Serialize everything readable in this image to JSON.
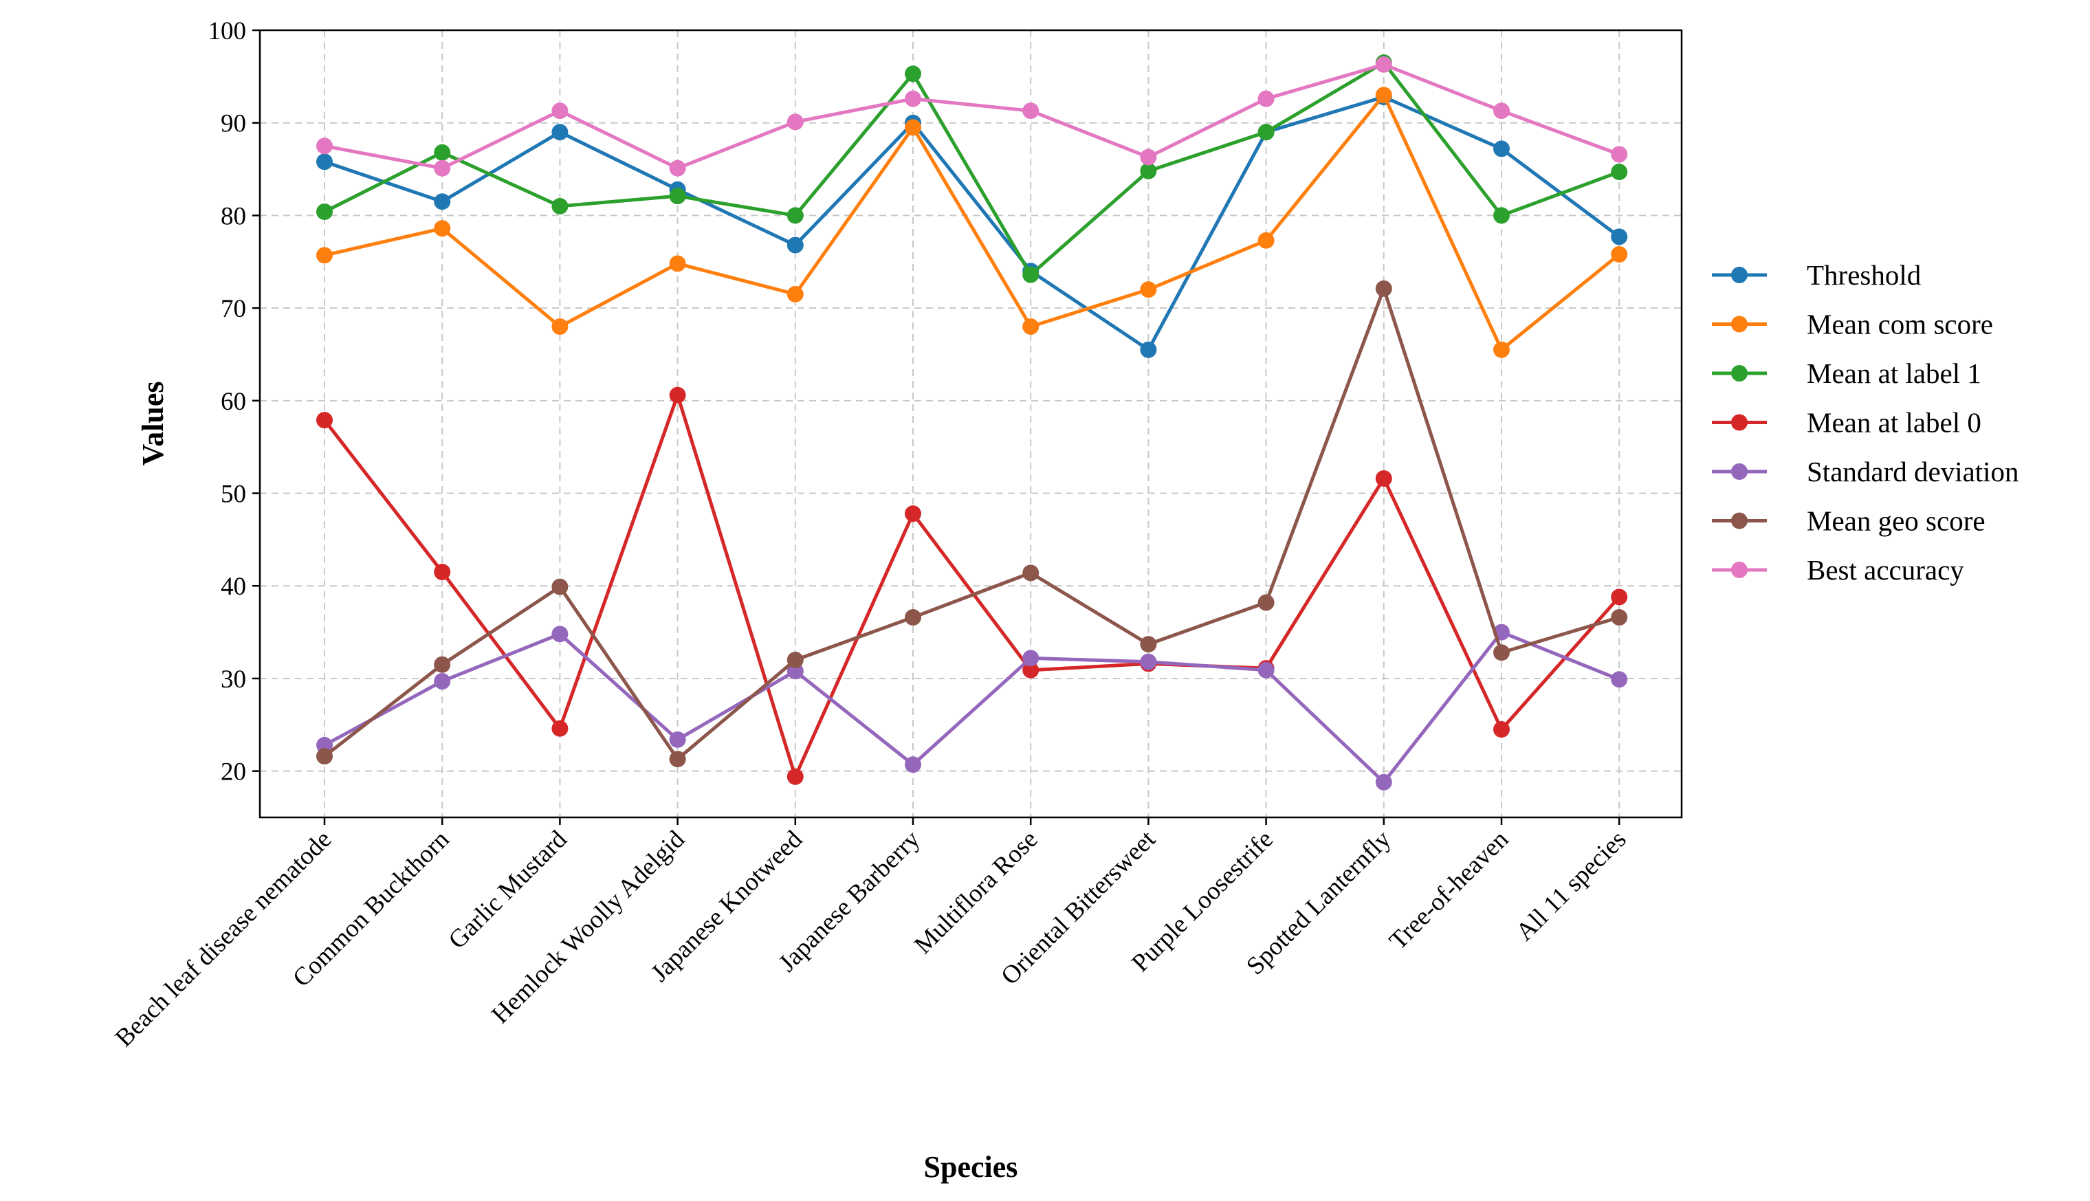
{
  "chart_data": {
    "type": "line",
    "xlabel": "Species",
    "ylabel": "Values",
    "categories": [
      "Beach leaf disease nematode",
      "Common Buckthorn",
      "Garlic Mustard",
      "Hemlock Woolly Adelgid",
      "Japanese Knotweed",
      "Japanese Barberry",
      "Multiflora Rose",
      "Oriental Bittersweet",
      "Purple Loosestrife",
      "Spotted Lanternfly",
      "Tree-of-heaven",
      "All 11 species"
    ],
    "ylim": [
      15,
      100
    ],
    "yticks": [
      20,
      30,
      40,
      50,
      60,
      70,
      80,
      90,
      100
    ],
    "grid": true,
    "legend_position": "right, outside plot",
    "series": [
      {
        "name": "Threshold",
        "color": "#1f77b4",
        "values": [
          85.8,
          81.5,
          89.0,
          82.8,
          76.8,
          90.0,
          74.0,
          65.5,
          89.0,
          92.8,
          87.2,
          77.7
        ]
      },
      {
        "name": "Mean com score",
        "color": "#ff7f0e",
        "values": [
          75.7,
          78.6,
          68.0,
          74.8,
          71.5,
          89.5,
          68.0,
          72.0,
          77.3,
          93.0,
          65.5,
          75.8
        ]
      },
      {
        "name": "Mean at label 1",
        "color": "#2ca02c",
        "values": [
          80.4,
          86.8,
          81.0,
          82.1,
          80.0,
          95.3,
          73.6,
          84.8,
          89.0,
          96.5,
          80.0,
          84.7
        ]
      },
      {
        "name": "Mean at label 0",
        "color": "#d62728",
        "values": [
          57.9,
          41.5,
          24.6,
          60.6,
          19.4,
          47.8,
          30.9,
          31.6,
          31.1,
          51.6,
          24.5,
          38.8
        ]
      },
      {
        "name": "Standard deviation",
        "color": "#9467bd",
        "values": [
          22.8,
          29.7,
          34.8,
          23.4,
          30.8,
          20.7,
          32.2,
          31.8,
          30.9,
          18.8,
          35.0,
          29.9
        ]
      },
      {
        "name": "Mean geo score",
        "color": "#8c564b",
        "values": [
          21.6,
          31.5,
          39.9,
          21.3,
          32.0,
          36.6,
          41.4,
          33.7,
          38.2,
          72.1,
          32.8,
          36.6
        ]
      },
      {
        "name": "Best accuracy",
        "color": "#e377c2",
        "values": [
          87.5,
          85.1,
          91.3,
          85.1,
          90.1,
          92.6,
          91.3,
          86.3,
          92.6,
          96.3,
          91.3,
          86.6
        ]
      }
    ]
  }
}
